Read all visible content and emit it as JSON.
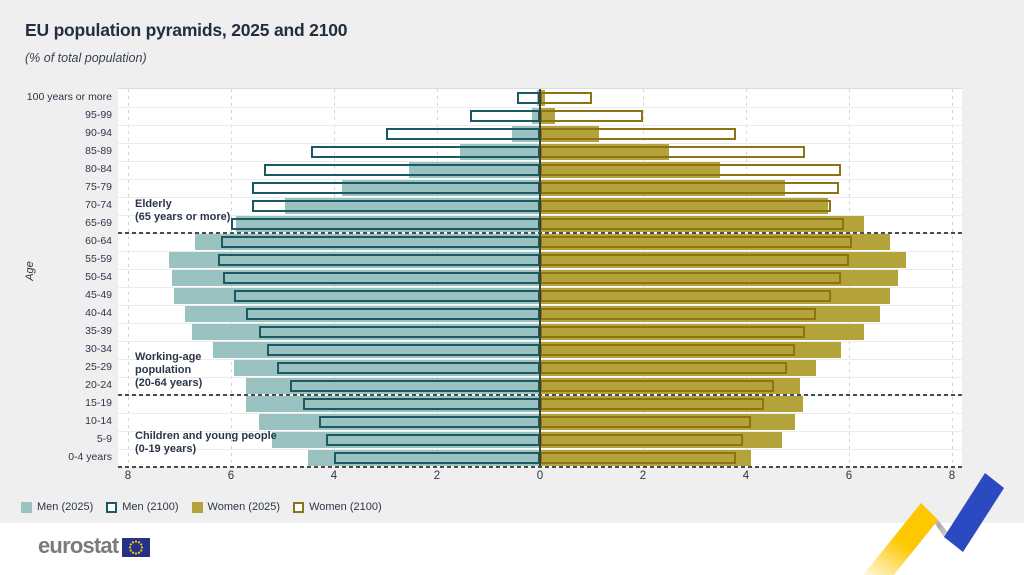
{
  "header": {
    "title": "EU population pyramids, 2025 and 2100",
    "subtitle": "(% of total population)"
  },
  "chart_data": {
    "type": "bar",
    "variant": "population-pyramid",
    "ylabel": "Age",
    "age_groups": [
      "100 years or more",
      "95-99",
      "90-94",
      "85-89",
      "80-84",
      "75-79",
      "70-74",
      "65-69",
      "60-64",
      "55-59",
      "50-54",
      "45-49",
      "40-44",
      "35-39",
      "30-34",
      "25-29",
      "20-24",
      "15-19",
      "10-14",
      "5-9",
      "0-4 years"
    ],
    "x_axis": {
      "max": 8,
      "ticks": [
        {
          "v": -8,
          "label": "8"
        },
        {
          "v": -6,
          "label": "6"
        },
        {
          "v": -4,
          "label": "4"
        },
        {
          "v": -2,
          "label": "2"
        },
        {
          "v": 0,
          "label": "0"
        },
        {
          "v": 2,
          "label": "2"
        },
        {
          "v": 4,
          "label": "4"
        },
        {
          "v": 6,
          "label": "6"
        },
        {
          "v": 8,
          "label": "8"
        }
      ]
    },
    "series": [
      {
        "name": "Men (2025)",
        "side": "left",
        "style": "fill",
        "color": "#9ac2c0",
        "values": [
          0.05,
          0.15,
          0.55,
          1.55,
          2.55,
          3.85,
          4.95,
          5.9,
          6.7,
          7.2,
          7.15,
          7.1,
          6.9,
          6.75,
          6.35,
          5.95,
          5.7,
          5.7,
          5.45,
          5.2,
          4.5
        ]
      },
      {
        "name": "Men (2100)",
        "side": "left",
        "style": "outline",
        "color": "#1a5a62",
        "values": [
          0.45,
          1.35,
          3.0,
          4.45,
          5.35,
          5.6,
          5.6,
          6.0,
          6.2,
          6.25,
          6.15,
          5.95,
          5.7,
          5.45,
          5.3,
          5.1,
          4.85,
          4.6,
          4.3,
          4.15,
          4.0
        ]
      },
      {
        "name": "Women (2025)",
        "side": "right",
        "style": "fill",
        "color": "#b4a23b",
        "values": [
          0.1,
          0.3,
          1.15,
          2.5,
          3.5,
          4.75,
          5.6,
          6.3,
          6.8,
          7.1,
          6.95,
          6.8,
          6.6,
          6.3,
          5.85,
          5.35,
          5.05,
          5.1,
          4.95,
          4.7,
          4.1
        ]
      },
      {
        "name": "Women (2100)",
        "side": "right",
        "style": "outline",
        "color": "#8c7414",
        "values": [
          1.0,
          2.0,
          3.8,
          5.15,
          5.85,
          5.8,
          5.65,
          5.9,
          6.05,
          6.0,
          5.85,
          5.65,
          5.35,
          5.15,
          4.95,
          4.8,
          4.55,
          4.35,
          4.1,
          3.95,
          3.8
        ]
      }
    ],
    "band_boundary_rows": [
      8,
      17,
      21
    ],
    "annotations": [
      {
        "lines": [
          "Elderly",
          "(65 years or more)"
        ],
        "anchor_row": 6.05
      },
      {
        "lines": [
          "Working-age",
          "population",
          "(20-64 years)"
        ],
        "anchor_row": 14.55
      },
      {
        "lines": [
          "Children and young people",
          "(0-19 years)"
        ],
        "anchor_row": 18.95
      }
    ],
    "grid": "dashed-vertical",
    "legend_position": "bottom-left"
  },
  "footer": {
    "brand": "eurostat"
  },
  "colors": {
    "background": "#efefef",
    "plot_background": "#ffffff",
    "text": "#2b3648",
    "gridline": "#d4d4d4",
    "band_divider": "#4c4c4c",
    "men_2025_fill": "#9ac2c0",
    "men_2100_outline": "#1a5a62",
    "women_2025_fill": "#b4a23b",
    "women_2100_outline": "#8c7414",
    "eurostat_gray": "#7b7b7b",
    "eu_flag_blue": "#24338a",
    "eu_star_yellow": "#ffcc00",
    "ribbon_yellow": "#fdc800",
    "ribbon_blue": "#2b49c1"
  }
}
